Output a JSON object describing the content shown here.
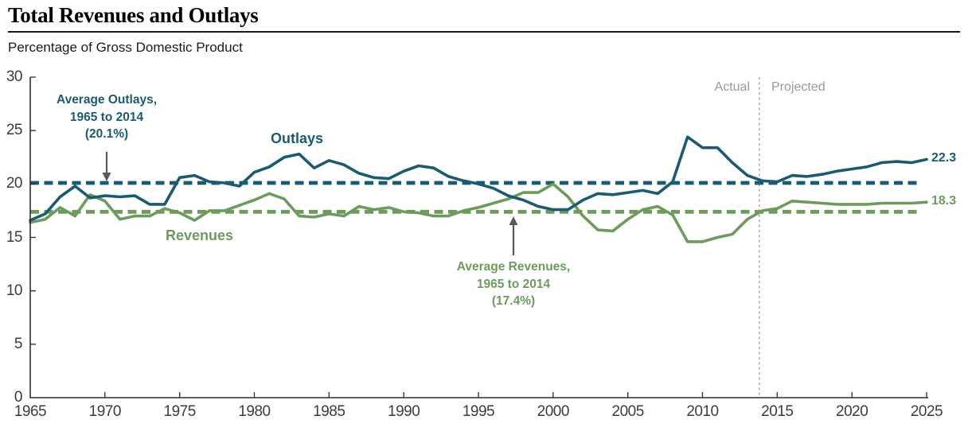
{
  "header": {
    "title": "Total Revenues and Outlays",
    "subtitle": "Percentage of Gross Domestic Product"
  },
  "chart_data": {
    "type": "line",
    "title": "Total Revenues and Outlays",
    "ylabel": "Percentage of Gross Domestic Product",
    "xlim": [
      1965,
      2025
    ],
    "ylim": [
      0,
      30
    ],
    "grid": false,
    "x_ticks": [
      1965,
      1970,
      1975,
      1980,
      1985,
      1990,
      1995,
      2000,
      2005,
      2010,
      2015,
      2020,
      2025
    ],
    "y_ticks_top_to_bottom": [
      30,
      25,
      20,
      15,
      10,
      5,
      0
    ],
    "x": [
      1965,
      1966,
      1967,
      1968,
      1969,
      1970,
      1971,
      1972,
      1973,
      1974,
      1975,
      1976,
      1977,
      1978,
      1979,
      1980,
      1981,
      1982,
      1983,
      1984,
      1985,
      1986,
      1987,
      1988,
      1989,
      1990,
      1991,
      1992,
      1993,
      1994,
      1995,
      1996,
      1997,
      1998,
      1999,
      2000,
      2001,
      2002,
      2003,
      2004,
      2005,
      2006,
      2007,
      2008,
      2009,
      2010,
      2011,
      2012,
      2013,
      2014,
      2015,
      2016,
      2017,
      2018,
      2019,
      2020,
      2021,
      2022,
      2023,
      2024,
      2025
    ],
    "series": [
      {
        "name": "Outlays",
        "color": "#1a5b74",
        "values": [
          16.6,
          17.2,
          18.8,
          19.8,
          18.7,
          18.9,
          18.8,
          18.9,
          18.1,
          18.1,
          20.6,
          20.8,
          20.2,
          20.1,
          19.8,
          21.1,
          21.6,
          22.5,
          22.8,
          21.5,
          22.2,
          21.8,
          21.0,
          20.6,
          20.5,
          21.2,
          21.7,
          21.5,
          20.7,
          20.3,
          20.0,
          19.6,
          18.9,
          18.5,
          17.9,
          17.6,
          17.6,
          18.5,
          19.1,
          19.0,
          19.2,
          19.4,
          19.1,
          20.2,
          24.4,
          23.4,
          23.4,
          22.0,
          20.8,
          20.3,
          20.2,
          20.8,
          20.7,
          20.9,
          21.2,
          21.4,
          21.6,
          22.0,
          22.1,
          22.0,
          22.3
        ]
      },
      {
        "name": "Revenues",
        "color": "#6d9b5c",
        "values": [
          16.4,
          16.7,
          17.8,
          17.0,
          19.0,
          18.4,
          16.7,
          17.0,
          17.0,
          17.7,
          17.3,
          16.6,
          17.5,
          17.5,
          18.0,
          18.5,
          19.1,
          18.6,
          17.0,
          16.9,
          17.2,
          17.0,
          17.9,
          17.6,
          17.8,
          17.4,
          17.3,
          17.0,
          17.0,
          17.5,
          17.8,
          18.2,
          18.6,
          19.2,
          19.2,
          20.0,
          18.8,
          17.0,
          15.7,
          15.6,
          16.7,
          17.6,
          17.9,
          17.1,
          14.6,
          14.6,
          15.0,
          15.3,
          16.7,
          17.5,
          17.7,
          18.4,
          18.3,
          18.2,
          18.1,
          18.1,
          18.1,
          18.2,
          18.2,
          18.2,
          18.3
        ]
      }
    ],
    "average_lines": [
      {
        "series": "Outlays",
        "value": 20.1,
        "color": "#1a5b74",
        "label_lines": [
          "Average Outlays,",
          "1965 to 2014",
          "(20.1%)"
        ]
      },
      {
        "series": "Revenues",
        "value": 17.4,
        "color": "#6d9b5c",
        "label_lines": [
          "Average Revenues,",
          "1965 to 2014",
          "(17.4%)"
        ]
      }
    ],
    "end_labels": [
      {
        "series": "Outlays",
        "text": "22.3"
      },
      {
        "series": "Revenues",
        "text": "18.3"
      }
    ],
    "divider": {
      "year": 2013.8,
      "left_label": "Actual",
      "right_label": "Projected"
    },
    "colors": {
      "outlays": "#1a5b74",
      "revenues": "#6d9b5c",
      "divider_gray": "#97999c",
      "zone_label_gray": "#97999c",
      "arrow_gray": "#58595b",
      "axis_text": "#3c3c3e"
    }
  }
}
